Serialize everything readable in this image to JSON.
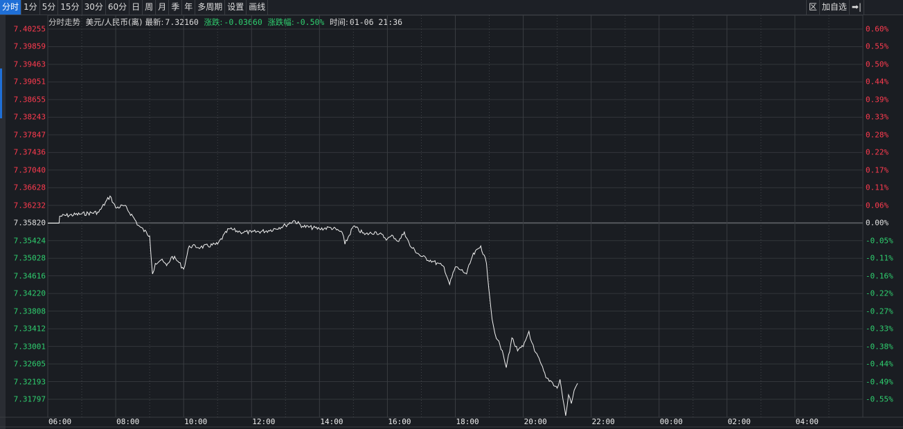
{
  "toolbar": {
    "tabs": [
      "分时",
      "1分",
      "5分",
      "15分",
      "30分",
      "60分",
      "日",
      "周",
      "月",
      "季",
      "年",
      "多周期",
      "设置",
      "画线"
    ],
    "active": 0,
    "right": [
      "区",
      "加自选",
      "➡|"
    ]
  },
  "info": {
    "title": "分时走势",
    "symbol": "美元/人民币(离)",
    "last_label": "最新:",
    "last": "7.32160",
    "chg_label": "涨跌:",
    "chg": "-0.03660",
    "pct_label": "涨跌幅:",
    "pct": "-0.50%",
    "time_label": "时间:",
    "time": "01-06 21:36"
  },
  "colors": {
    "up": "#ff3b4f",
    "down": "#2fcf6f",
    "flat": "#e0e0e0",
    "accent": "#1f6fd6"
  },
  "chart_data": {
    "type": "line",
    "prev_close": 7.3582,
    "ylim": [
      7.31797,
      7.40255
    ],
    "y_ticks": [
      "7.40255",
      "7.39859",
      "7.39463",
      "7.39051",
      "7.38655",
      "7.38243",
      "7.37847",
      "7.37436",
      "7.37040",
      "7.36628",
      "7.36232",
      "7.35820",
      "7.35424",
      "7.35028",
      "7.34616",
      "7.34220",
      "7.33808",
      "7.33412",
      "7.33001",
      "7.32605",
      "7.32193",
      "7.31797"
    ],
    "pct_ticks": [
      "0.60%",
      "0.55%",
      "0.50%",
      "0.44%",
      "0.39%",
      "0.33%",
      "0.28%",
      "0.22%",
      "0.17%",
      "0.11%",
      "0.06%",
      "0.00%",
      "-0.05%",
      "-0.11%",
      "-0.16%",
      "-0.22%",
      "-0.27%",
      "-0.33%",
      "-0.38%",
      "-0.44%",
      "-0.49%",
      "-0.55%"
    ],
    "x_ticks": [
      "06:00",
      "08:00",
      "10:00",
      "12:00",
      "14:00",
      "16:00",
      "18:00",
      "20:00",
      "22:00",
      "00:00",
      "02:00",
      "04:00"
    ],
    "series": [
      {
        "x": [
          "06:00",
          "06:20",
          "06:21",
          "07:00",
          "07:30",
          "07:50",
          "08:00",
          "08:15",
          "08:30",
          "08:40",
          "09:00",
          "09:05",
          "09:10",
          "09:20",
          "09:30",
          "09:40",
          "09:50",
          "10:00",
          "10:10",
          "10:30",
          "11:00",
          "11:20",
          "11:40",
          "12:00",
          "12:30",
          "13:00",
          "13:15",
          "13:30",
          "14:00",
          "14:20",
          "14:40",
          "14:45",
          "15:00",
          "15:20",
          "15:40",
          "16:00",
          "16:10",
          "16:20",
          "16:30",
          "16:40",
          "17:00",
          "17:20",
          "17:40",
          "17:50",
          "18:00",
          "18:10",
          "18:20",
          "18:30",
          "18:45",
          "18:55",
          "19:05",
          "19:10",
          "19:15",
          "19:25",
          "19:30",
          "19:40",
          "19:50",
          "20:00",
          "20:10",
          "20:15",
          "20:20",
          "20:30",
          "20:40",
          "20:50",
          "21:00",
          "21:05",
          "21:10",
          "21:15",
          "21:20",
          "21:25",
          "21:30",
          "21:36"
        ],
        "y": [
          7.3582,
          7.3582,
          7.3598,
          7.3603,
          7.3607,
          7.3644,
          7.3617,
          7.3622,
          7.3598,
          7.3577,
          7.3553,
          7.3466,
          7.349,
          7.3498,
          7.3485,
          7.3506,
          7.3495,
          7.3477,
          7.353,
          7.3527,
          7.3534,
          7.3569,
          7.3562,
          7.3561,
          7.3565,
          7.3577,
          7.3588,
          7.3575,
          7.3569,
          7.3572,
          7.3561,
          7.3534,
          7.3575,
          7.3556,
          7.3562,
          7.3546,
          7.3553,
          7.354,
          7.3562,
          7.353,
          7.3506,
          7.3495,
          7.3482,
          7.3442,
          7.3482,
          7.3475,
          7.3466,
          7.3506,
          7.353,
          7.349,
          7.3363,
          7.333,
          7.3315,
          7.328,
          7.3252,
          7.332,
          7.329,
          7.33,
          7.3335,
          7.331,
          7.329,
          7.3265,
          7.3229,
          7.322,
          7.3205,
          7.3225,
          7.3181,
          7.3142,
          7.319,
          7.317,
          7.32,
          7.3216
        ]
      }
    ]
  }
}
